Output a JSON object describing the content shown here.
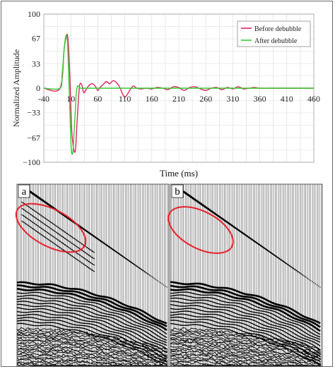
{
  "chart_data": [
    {
      "type": "line",
      "title": "",
      "xlabel": "Time (ms)",
      "ylabel": "Normalized Amplitude",
      "xlim": [
        -40,
        460
      ],
      "ylim": [
        -100,
        100
      ],
      "xticks": [
        -40,
        10,
        60,
        110,
        160,
        210,
        260,
        310,
        360,
        410,
        460
      ],
      "yticks": [
        100,
        67,
        33,
        0,
        -33,
        -67,
        -100
      ],
      "tick_labels_x": [
        "-40",
        "10",
        "60",
        "110",
        "160",
        "210",
        "260",
        "310",
        "360",
        "410",
        "460"
      ],
      "tick_labels_y": [
        "100",
        "67",
        "33",
        "0",
        "−33",
        "−67",
        "−100"
      ],
      "grid": true,
      "legend_position": "top-right",
      "series": [
        {
          "name": "Before debubble",
          "color": "#e0245e",
          "x": [
            -40,
            -10,
            -2,
            4,
            8,
            12,
            18,
            22,
            26,
            30,
            34,
            38,
            44,
            50,
            56,
            60,
            64,
            70,
            76,
            82,
            88,
            94,
            100,
            106,
            110,
            114,
            120,
            126,
            132,
            140,
            150,
            160,
            170,
            180,
            190,
            200,
            210,
            220,
            230,
            240,
            250,
            260,
            270,
            280,
            290,
            300,
            310,
            320,
            330,
            340,
            350,
            360,
            380,
            400,
            420,
            440,
            460
          ],
          "y": [
            0,
            0,
            55,
            71,
            20,
            -60,
            -86,
            -40,
            2,
            5,
            -6,
            -2,
            4,
            6,
            2,
            -3,
            1,
            5,
            9,
            6,
            10,
            8,
            2,
            -8,
            -12,
            -9,
            -2,
            3,
            0,
            -1,
            0,
            -1,
            1,
            0,
            -2,
            2,
            1,
            -3,
            1,
            2,
            -1,
            -3,
            0,
            1,
            -2,
            1,
            -1,
            2,
            -1,
            0,
            1,
            0,
            0,
            0,
            0,
            0,
            0
          ]
        },
        {
          "name": "After debubble",
          "color": "#33cc33",
          "x": [
            -40,
            -10,
            -6,
            -2,
            0,
            2,
            4,
            6,
            8,
            10,
            12,
            14,
            16,
            18,
            20,
            22,
            24,
            26,
            28,
            30,
            34,
            40,
            60,
            100,
            160,
            260,
            360,
            460
          ],
          "y": [
            0,
            0,
            20,
            55,
            68,
            71,
            60,
            20,
            -25,
            -70,
            -88,
            -85,
            -60,
            -35,
            -8,
            2,
            3,
            1,
            0,
            0,
            0,
            0,
            0,
            0,
            0,
            0,
            0,
            0
          ]
        }
      ]
    }
  ],
  "panels": {
    "a_label": "a",
    "b_label": "b",
    "highlight_color": "#e8202a"
  }
}
